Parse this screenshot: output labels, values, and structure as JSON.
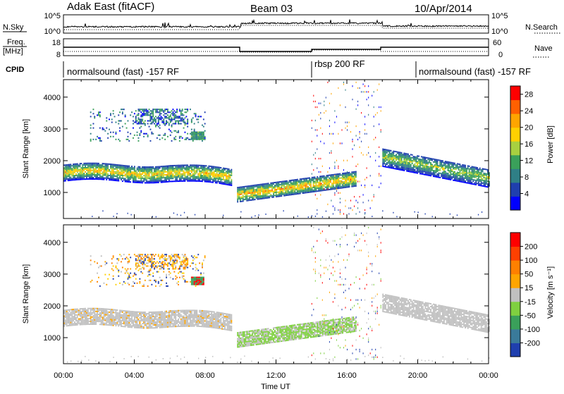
{
  "header": {
    "title": "Adak East (fitACF)",
    "beam": "Beam 03",
    "date": "10/Apr/2014"
  },
  "top_panels": {
    "nsky_label": "N.Sky",
    "nsky_ticks": [
      "10^5",
      "10^0"
    ],
    "nsearch_label": "N.Search",
    "nsearch_ticks": [
      "10^5",
      "10^0"
    ],
    "freq_label": "Freq.",
    "freq_unit": "[MHz]",
    "freq_ticks": [
      "18",
      "8"
    ],
    "nave_label": "Nave",
    "nave_ticks": [
      "60",
      "0"
    ],
    "cpid_label": "CPID",
    "cpid_segments": [
      {
        "label": "normalsound (fast) -157 RF",
        "start_h": 0,
        "end_h": 14
      },
      {
        "label": "rbsp 200 RF",
        "start_h": 14,
        "end_h": 20
      },
      {
        "label": "normalsound (fast) -157 RF",
        "start_h": 20,
        "end_h": 24
      }
    ]
  },
  "chart_data": [
    {
      "type": "heatmap",
      "title": "Power",
      "ylabel": "Slant Range [km]",
      "xlabel": "Time UT",
      "x_ticks": [
        "00:00",
        "04:00",
        "08:00",
        "12:00",
        "16:00",
        "20:00",
        "00:00"
      ],
      "x_range_hours": [
        0,
        24
      ],
      "y_ticks": [
        1000,
        2000,
        3000,
        4000
      ],
      "ylim": [
        180,
        4550
      ],
      "colorbar": {
        "label": "Power [dB]",
        "ticks": [
          4,
          8,
          12,
          16,
          20,
          24,
          28
        ],
        "range": [
          0,
          30
        ],
        "colors": [
          "#0000ff",
          "#1f3fae",
          "#2f7f86",
          "#3aa05a",
          "#a8d040",
          "#ffd000",
          "#ffa500",
          "#ff6000",
          "#ff0000"
        ]
      }
    },
    {
      "type": "heatmap",
      "title": "Velocity",
      "ylabel": "Slant Range [km]",
      "xlabel": "Time UT",
      "x_ticks": [
        "00:00",
        "04:00",
        "08:00",
        "12:00",
        "16:00",
        "20:00",
        "00:00"
      ],
      "x_range_hours": [
        0,
        24
      ],
      "y_ticks": [
        1000,
        2000,
        3000,
        4000
      ],
      "ylim": [
        180,
        4550
      ],
      "colorbar": {
        "label": "Velocity [m s⁻¹]",
        "ticks": [
          200,
          100,
          50,
          15,
          -15,
          -50,
          -100,
          -200
        ],
        "colors": [
          "#1f3fae",
          "#3a7a9a",
          "#3aa05a",
          "#7fd040",
          "#c0c0c0",
          "#ffa500",
          "#ff8000",
          "#ff4000",
          "#ff0000"
        ]
      }
    }
  ],
  "x_axis_title": "Time UT"
}
